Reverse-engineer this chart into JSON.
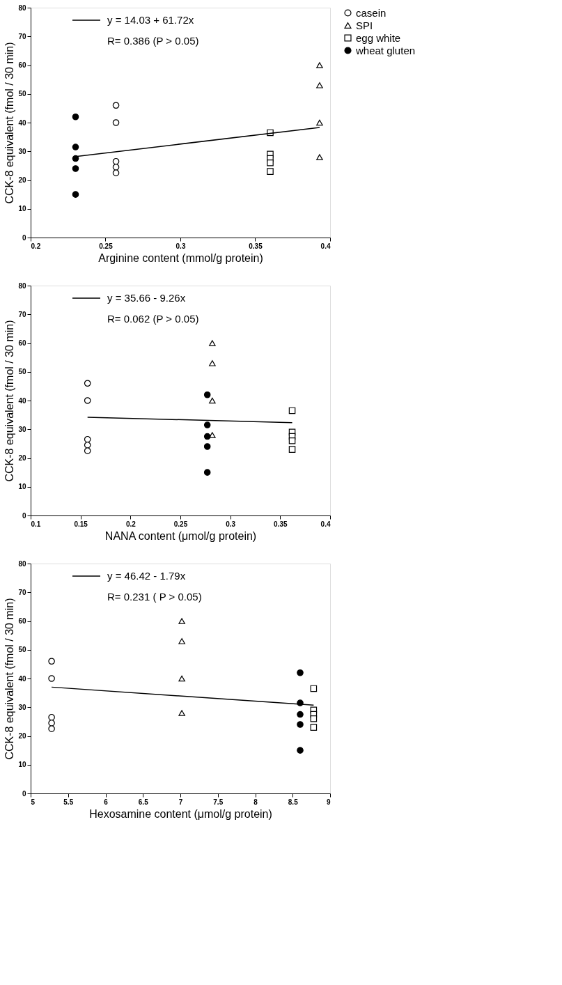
{
  "chart_data": [
    {
      "type": "scatter",
      "xlabel": "Arginine content (mmol/g protein)",
      "ylabel": "CCK-8 equivalent (fmol / 30 min)",
      "xlim": [
        0.2,
        0.4
      ],
      "xticks": [
        0.2,
        0.25,
        0.3,
        0.35,
        0.4
      ],
      "ylim": [
        0,
        80
      ],
      "yticks": [
        0,
        10,
        20,
        30,
        40,
        50,
        60,
        70,
        80
      ],
      "grid": false,
      "legend": "top right",
      "annotations": [
        "y = 14.03 + 61.72x",
        "R= 0.386 (P > 0.05)"
      ],
      "series": [
        {
          "name": "casein",
          "color": "#ffffff",
          "marker": "circle",
          "x": [
            0.257,
            0.257,
            0.257,
            0.257,
            0.257
          ],
          "values": [
            46,
            40,
            26.5,
            24.5,
            22.5
          ]
        },
        {
          "name": "SPI",
          "color": "#ffffff",
          "marker": "triangle",
          "x": [
            0.393,
            0.393,
            0.393,
            0.393
          ],
          "values": [
            60,
            53,
            40,
            28
          ]
        },
        {
          "name": "egg white",
          "color": "#ffffff",
          "marker": "square",
          "x": [
            0.36,
            0.36,
            0.36,
            0.36,
            0.36
          ],
          "values": [
            36.5,
            29,
            27.5,
            26,
            23
          ]
        },
        {
          "name": "wheat gluten",
          "color": "#000000",
          "marker": "circle",
          "x": [
            0.23,
            0.23,
            0.23,
            0.23,
            0.23
          ],
          "values": [
            42,
            31.5,
            27.5,
            24,
            15
          ]
        },
        {
          "type": "line",
          "color": "#000000",
          "x": [
            0.23,
            0.393
          ],
          "values": [
            28.2,
            38.3
          ]
        }
      ]
    },
    {
      "type": "scatter",
      "xlabel": "NANA content (μmol/g protein)",
      "ylabel": "CCK-8 equivalent (fmol / 30 min)",
      "xlim": [
        0.1,
        0.4
      ],
      "xticks": [
        0.1,
        0.15,
        0.2,
        0.25,
        0.3,
        0.35,
        0.4
      ],
      "ylim": [
        0,
        80
      ],
      "yticks": [
        0,
        10,
        20,
        30,
        40,
        50,
        60,
        70,
        80
      ],
      "grid": false,
      "legend": false,
      "annotations": [
        "y = 35.66 - 9.26x",
        "R= 0.062  (P > 0.05)"
      ],
      "series": [
        {
          "color": "#ffffff",
          "marker": "circle",
          "x": [
            0.157,
            0.157,
            0.157,
            0.157,
            0.157
          ],
          "values": [
            46,
            40,
            26.5,
            24.5,
            22.5
          ]
        },
        {
          "color": "#ffffff",
          "marker": "triangle",
          "x": [
            0.282,
            0.282,
            0.282,
            0.282
          ],
          "values": [
            60,
            53,
            40,
            28
          ]
        },
        {
          "color": "#ffffff",
          "marker": "square",
          "x": [
            0.362,
            0.362,
            0.362,
            0.362,
            0.362
          ],
          "values": [
            36.5,
            29,
            27.5,
            26,
            23
          ]
        },
        {
          "color": "#000000",
          "marker": "circle",
          "x": [
            0.277,
            0.277,
            0.277,
            0.277,
            0.277
          ],
          "values": [
            42,
            31.5,
            27.5,
            24,
            15
          ]
        },
        {
          "type": "line",
          "color": "#000000",
          "x": [
            0.157,
            0.362
          ],
          "values": [
            34.2,
            32.3
          ]
        }
      ]
    },
    {
      "type": "scatter",
      "xlabel": "Hexosamine content (μmol/g protein)",
      "ylabel": "CCK-8 equivalent (fmol / 30 min)",
      "xlim": [
        5,
        9
      ],
      "xticks": [
        5,
        5.5,
        6,
        6.5,
        7,
        7.5,
        8,
        8.5,
        9
      ],
      "ylim": [
        0,
        80
      ],
      "yticks": [
        0,
        10,
        20,
        30,
        40,
        50,
        60,
        70,
        80
      ],
      "grid": false,
      "legend": false,
      "annotations": [
        "y = 46.42 - 1.79x",
        "R= 0.231 ( P > 0.05)"
      ],
      "series": [
        {
          "color": "#ffffff",
          "marker": "circle",
          "x": [
            5.28,
            5.28,
            5.28,
            5.28,
            5.28
          ],
          "values": [
            46,
            40,
            26.5,
            24.5,
            22.5
          ]
        },
        {
          "color": "#ffffff",
          "marker": "triangle",
          "x": [
            7.02,
            7.02,
            7.02,
            7.02
          ],
          "values": [
            60,
            53,
            40,
            28
          ]
        },
        {
          "color": "#ffffff",
          "marker": "square",
          "x": [
            8.78,
            8.78,
            8.78,
            8.78,
            8.78
          ],
          "values": [
            36.5,
            29,
            27.5,
            26,
            23
          ]
        },
        {
          "color": "#000000",
          "marker": "circle",
          "x": [
            8.6,
            8.6,
            8.6,
            8.6,
            8.6
          ],
          "values": [
            42,
            31.5,
            27.5,
            24,
            15
          ]
        },
        {
          "type": "line",
          "color": "#000000",
          "x": [
            5.28,
            8.78
          ],
          "values": [
            37.0,
            30.7
          ]
        }
      ]
    }
  ]
}
